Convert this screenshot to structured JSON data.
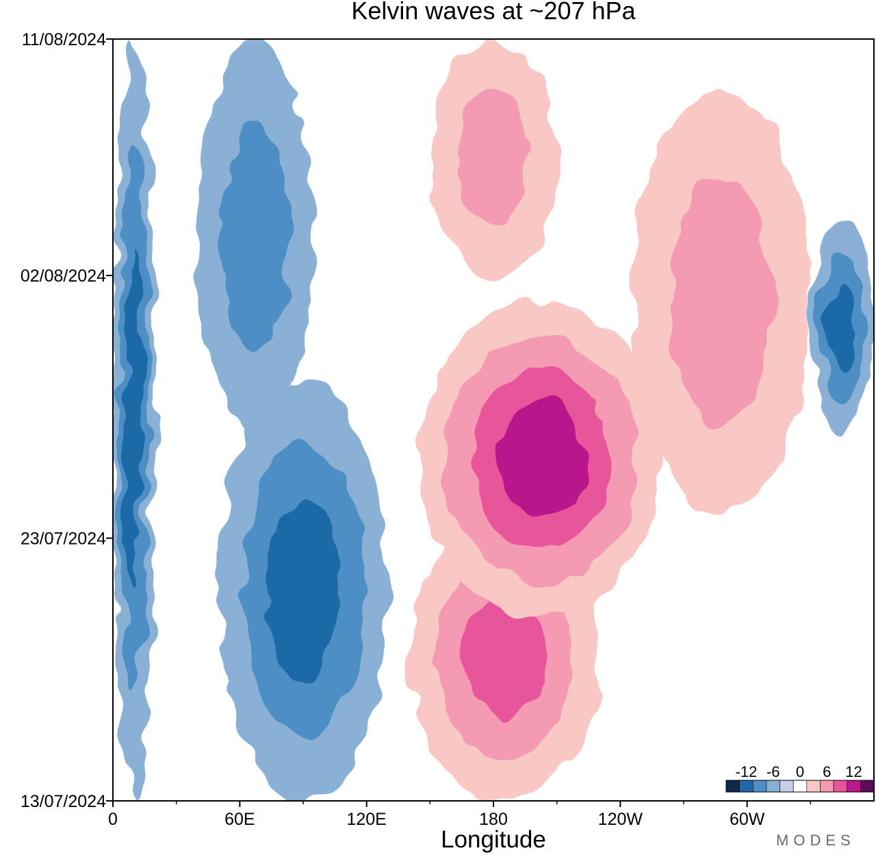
{
  "chart_data": {
    "type": "heatmap",
    "title": "Kelvin waves at ~207 hPa",
    "xlabel": "Longitude",
    "ylabel": "",
    "x_ticks": [
      "0",
      "60E",
      "120E",
      "180",
      "120W",
      "60W"
    ],
    "x_range": [
      0,
      360
    ],
    "y_ticks": [
      "13/07/2024",
      "23/07/2024",
      "02/08/2024",
      "11/08/2024"
    ],
    "y_range": [
      "13/07/2024",
      "11/08/2024"
    ],
    "colorbar": {
      "tick_labels": [
        "-12",
        "-6",
        "0",
        "6",
        "12"
      ],
      "levels": [
        -15,
        -12,
        -9,
        -6,
        -3,
        0,
        3,
        6,
        9,
        12,
        15
      ],
      "colors": [
        "#0b2a4a",
        "#1f69a8",
        "#4d8fc4",
        "#8ab0d6",
        "#c8cee6",
        "#ffffff",
        "#f9c8c4",
        "#f59ab3",
        "#e9559b",
        "#b8198a",
        "#5c0a5c"
      ]
    },
    "features": [
      {
        "sign": "negative",
        "lon": [
          0,
          20
        ],
        "date": [
          "13/07/2024",
          "11/08/2024"
        ],
        "peak": -10
      },
      {
        "sign": "negative",
        "lon": [
          40,
          95
        ],
        "date": [
          "27/07/2024",
          "11/08/2024"
        ],
        "peak": -8
      },
      {
        "sign": "negative",
        "lon": [
          50,
          130
        ],
        "date": [
          "13/07/2024",
          "29/07/2024"
        ],
        "peak": -9
      },
      {
        "sign": "positive",
        "lon": [
          140,
          230
        ],
        "date": [
          "13/07/2024",
          "24/07/2024"
        ],
        "peak": 9
      },
      {
        "sign": "positive",
        "lon": [
          145,
          260
        ],
        "date": [
          "20/07/2024",
          "01/08/2024"
        ],
        "peak": 13
      },
      {
        "sign": "positive",
        "lon": [
          150,
          210
        ],
        "date": [
          "02/08/2024",
          "11/08/2024"
        ],
        "peak": 8
      },
      {
        "sign": "positive",
        "lon": [
          245,
          330
        ],
        "date": [
          "24/07/2024",
          "09/08/2024"
        ],
        "peak": 8
      },
      {
        "sign": "negative",
        "lon": [
          330,
          360
        ],
        "date": [
          "27/07/2024",
          "04/08/2024"
        ],
        "peak": -9
      }
    ]
  },
  "watermark": "MODES"
}
